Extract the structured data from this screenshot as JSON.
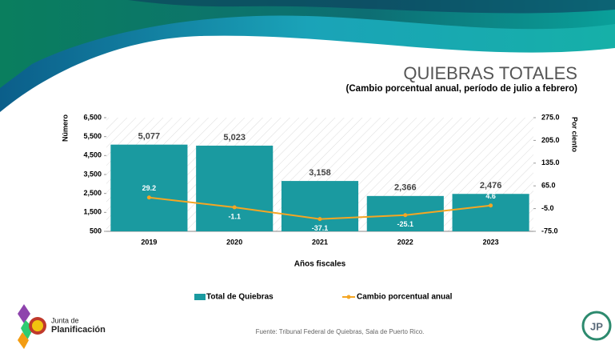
{
  "chart_data": {
    "type": "bar_line",
    "title": "QUIEBRAS TOTALES",
    "subtitle": "(Cambio porcentual anual, período de julio a febrero)",
    "y_label": "Número",
    "y2_label": "Por ciento",
    "x_label": "Años fiscales",
    "categories": [
      "2019",
      "2020",
      "2021",
      "2022",
      "2023"
    ],
    "series": [
      {
        "name": "Total de Quiebras",
        "type": "bar",
        "color": "#1a9aa0",
        "values": [
          5077,
          5023,
          3158,
          2366,
          2476
        ],
        "value_labels": [
          "5,077",
          "5,023",
          "3,158",
          "2,366",
          "2,476"
        ]
      },
      {
        "name": "Cambio porcentual anual",
        "type": "line",
        "axis": "y2",
        "color": "#f5a623",
        "values": [
          29.2,
          -1.1,
          -37.1,
          -25.1,
          4.6
        ]
      }
    ],
    "ylim": [
      500,
      6500
    ],
    "yticks": [
      500,
      {
        "value": 1500,
        "label": "1,500"
      },
      {
        "value": 2500,
        "label": "2,500"
      },
      {
        "value": 3500,
        "label": "3,500"
      },
      {
        "value": 4500,
        "label": "4,500"
      },
      {
        "value": 5500,
        "label": "5,500"
      },
      {
        "value": 6500,
        "label": "6,500"
      }
    ],
    "y2lim": [
      -75,
      275
    ],
    "y2ticks": [
      {
        "value": -75,
        "label": "-75.0"
      },
      {
        "value": -5,
        "label": "-5.0"
      },
      {
        "value": 65,
        "label": "65.0"
      },
      {
        "value": 135,
        "label": "135.0"
      },
      {
        "value": 205,
        "label": "205.0"
      },
      {
        "value": 275,
        "label": "275.0"
      }
    ],
    "legend": "bottom"
  },
  "source": "Fuente: Tribunal Federal de Quiebras, Sala de Puerto Rico.",
  "logo": {
    "line1": "Junta de",
    "line2": "Planificación"
  },
  "badge": "JP"
}
